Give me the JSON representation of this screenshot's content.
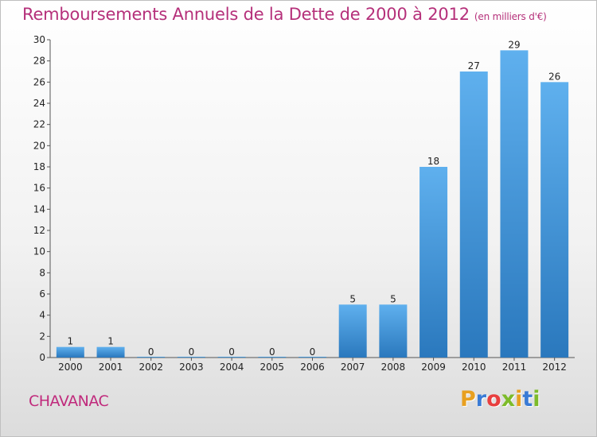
{
  "chart_data": {
    "type": "bar",
    "title": "Remboursements Annuels de la Dette de 2000 à 2012",
    "subtitle": "(en milliers d'€)",
    "xlabel": "",
    "ylabel": "",
    "categories": [
      "2000",
      "2001",
      "2002",
      "2003",
      "2004",
      "2005",
      "2006",
      "2007",
      "2008",
      "2009",
      "2010",
      "2011",
      "2012"
    ],
    "values": [
      1,
      1,
      0,
      0,
      0,
      0,
      0,
      5,
      5,
      18,
      27,
      29,
      26
    ],
    "ylim": [
      0,
      30
    ],
    "yticks": [
      0,
      2,
      4,
      6,
      8,
      10,
      12,
      14,
      16,
      18,
      20,
      22,
      24,
      26,
      28,
      30
    ],
    "grid": false,
    "bar_color": "#3f8fd2"
  },
  "commune": "CHAVANAC",
  "brand": {
    "letters": [
      "P",
      "r",
      "o",
      "x",
      "i",
      "t",
      "i"
    ],
    "colors": [
      "#e8a020",
      "#3a7bd5",
      "#e83f3f",
      "#7dbb2a",
      "#e8a020",
      "#3a7bd5",
      "#7dbb2a"
    ]
  }
}
